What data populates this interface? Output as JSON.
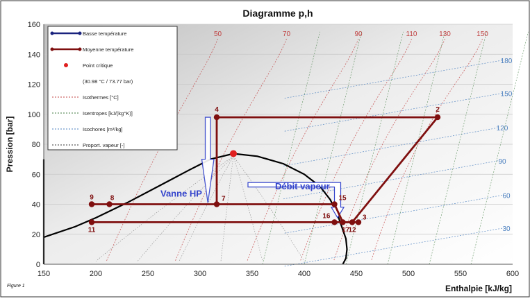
{
  "chart_data": {
    "type": "line",
    "title": "Diagramme p,h",
    "xlabel": "Enthalpie [kJ/kg]",
    "ylabel": "Pression [bar]",
    "xlim": [
      150,
      600
    ],
    "ylim": [
      0,
      160
    ],
    "x_ticks": [
      "150",
      "200",
      "250",
      "300",
      "350",
      "400",
      "450",
      "500",
      "550",
      "600"
    ],
    "y_ticks": [
      "0",
      "20",
      "40",
      "60",
      "80",
      "100",
      "120",
      "140",
      "160"
    ],
    "grid": true,
    "legend_position": "top-left",
    "legend": [
      {
        "label": "Basse température",
        "style": "blue-line"
      },
      {
        "label": "Moyenne température",
        "style": "red-line"
      },
      {
        "label": "Point critique",
        "style": "red-dot"
      },
      {
        "label": "(30.98 °C / 73.77 bar)",
        "style": "none"
      },
      {
        "label": "Isothermes [°C]",
        "style": "dotted-red"
      },
      {
        "label": "Isentropes [kJ/(kg°K)]",
        "style": "dotted-green"
      },
      {
        "label": "Isochores [m³/kg]",
        "style": "dotted-teal"
      },
      {
        "label": "Proport. vapeur [-]",
        "style": "dotted-black"
      }
    ],
    "isotherm_labels": [
      {
        "label": "50",
        "x": 317,
        "y": 154
      },
      {
        "label": "70",
        "x": 383,
        "y": 154
      },
      {
        "label": "90",
        "x": 452,
        "y": 154
      },
      {
        "label": "110",
        "x": 503,
        "y": 154
      },
      {
        "label": "130",
        "x": 535,
        "y": 154
      },
      {
        "label": "150",
        "x": 571,
        "y": 154
      }
    ],
    "isochore_labels": [
      {
        "label": "180",
        "x": 594,
        "y": 136
      },
      {
        "label": "150",
        "x": 594,
        "y": 114
      },
      {
        "label": "120",
        "x": 590,
        "y": 91
      },
      {
        "label": "90",
        "x": 590,
        "y": 69
      },
      {
        "label": "60",
        "x": 594,
        "y": 46
      },
      {
        "label": "30",
        "x": 594,
        "y": 24
      }
    ],
    "critical_point": {
      "h": 332,
      "p": 73.77
    },
    "saturation_curve": [
      [
        150,
        18
      ],
      [
        180,
        25
      ],
      [
        200,
        31
      ],
      [
        230,
        41
      ],
      [
        260,
        52
      ],
      [
        290,
        63
      ],
      [
        310,
        70
      ],
      [
        332,
        73.77
      ],
      [
        355,
        72
      ],
      [
        380,
        67
      ],
      [
        400,
        60
      ],
      [
        415,
        52
      ],
      [
        425,
        43
      ],
      [
        432,
        33
      ],
      [
        436,
        25
      ],
      [
        440,
        17
      ],
      [
        441,
        10
      ],
      [
        440,
        4
      ],
      [
        437,
        0
      ]
    ],
    "series": [
      {
        "name": "Moyenne température",
        "color": "#7f0f0f",
        "segments": [
          [
            [
              316,
              98
            ],
            [
              316,
              40
            ]
          ],
          [
            [
              316,
              98
            ],
            [
              528,
              98
            ],
            [
              446,
              28
            ]
          ],
          [
            [
              196,
              40
            ],
            [
              429,
              40
            ],
            [
              437,
              28
            ],
            [
              452,
              28
            ]
          ],
          [
            [
              196,
              28
            ],
            [
              446,
              28
            ]
          ]
        ]
      }
    ],
    "points": [
      {
        "label": "2",
        "h": 528,
        "p": 98
      },
      {
        "label": "4",
        "h": 316,
        "p": 98
      },
      {
        "label": "7",
        "h": 316,
        "p": 40
      },
      {
        "label": "8",
        "h": 213,
        "p": 40
      },
      {
        "label": "9",
        "h": 196,
        "p": 40
      },
      {
        "label": "11",
        "h": 196,
        "p": 28
      },
      {
        "label": "12",
        "h": 446,
        "p": 28
      },
      {
        "label": "3",
        "h": 452,
        "p": 28
      },
      {
        "label": "15",
        "h": 429,
        "p": 40
      },
      {
        "label": "16",
        "h": 429,
        "p": 28
      },
      {
        "label": "17",
        "h": 437,
        "p": 28
      }
    ],
    "annotations": [
      {
        "label": "Vanne HP",
        "h": 262,
        "p": 45
      },
      {
        "label": "Débit vapeur",
        "h": 372,
        "p": 50
      }
    ]
  },
  "caption": "Figure 1",
  "colors": {
    "medium_temp": "#7f0f0f",
    "low_temp": "#1a237e",
    "critical": "#e02020",
    "annotation": "#3344cc",
    "isotherm": "#c04040",
    "isochore": "#4a7fbf",
    "isentrope": "#3c7a3c"
  }
}
